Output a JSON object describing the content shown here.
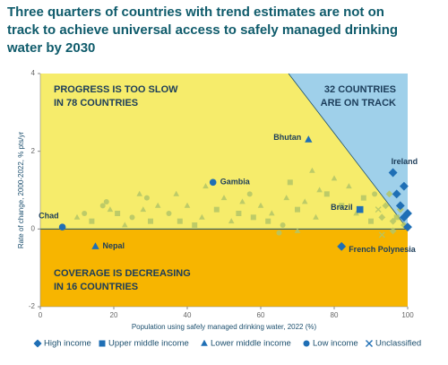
{
  "chart_data": {
    "type": "scatter",
    "title_lines": [
      "Three quarters of countries with trend estimates are not on",
      "track to achieve universal access to safely managed drinking",
      "water by 2030"
    ],
    "x_label": "Population using safely managed drinking water, 2022 (%)",
    "y_label": "Rate of change, 2000-2022, % pts/yr",
    "xlim": [
      0,
      100
    ],
    "ylim": [
      -2,
      4
    ],
    "xticks": [
      0,
      20,
      40,
      60,
      80,
      100
    ],
    "yticks": [
      -2,
      0,
      2,
      4
    ],
    "zones": [
      {
        "lines": [
          "PROGRESS IS TOO SLOW",
          "IN 78 COUNTRIES"
        ],
        "color": "#f6ec6b"
      },
      {
        "lines": [
          "32 COUNTRIES",
          "ARE ON TRACK"
        ],
        "color": "#9fd0ea"
      },
      {
        "lines": [
          "COVERAGE IS DECREASING",
          "IN 16 COUNTRIES"
        ],
        "color": "#f7b500"
      }
    ],
    "series": [
      {
        "name": "High income",
        "marker": "diamond",
        "color": "#1f6fb5",
        "x": [
          96,
          82,
          98,
          99,
          100,
          97,
          99,
          100
        ],
        "y": [
          1.45,
          -0.45,
          0.6,
          0.3,
          0.05,
          0.9,
          1.1,
          0.4
        ],
        "labels": [
          "Ireland",
          "French Polynesia",
          null,
          null,
          null,
          null,
          null,
          null
        ]
      },
      {
        "name": "Upper middle income",
        "marker": "square",
        "color": "#1f6fb5",
        "x": [
          87
        ],
        "y": [
          0.5
        ],
        "labels": [
          "Brazil"
        ]
      },
      {
        "name": "Lower middle income",
        "marker": "triangle",
        "color": "#1f6fb5",
        "x": [
          73,
          15
        ],
        "y": [
          2.3,
          -0.45
        ],
        "labels": [
          "Bhutan",
          "Nepal"
        ]
      },
      {
        "name": "Low income",
        "marker": "circle",
        "color": "#1f6fb5",
        "x": [
          47,
          6
        ],
        "y": [
          1.2,
          0.05
        ],
        "labels": [
          "Gambia",
          "Chad"
        ]
      },
      {
        "name": "Unclassified",
        "marker": "x",
        "color": "#1f6fb5",
        "x": [],
        "y": [],
        "labels": []
      }
    ],
    "other_points": {
      "color": "#b3c667",
      "x": [
        10,
        12,
        14,
        17,
        18,
        19,
        21,
        23,
        25,
        27,
        28,
        29,
        30,
        32,
        35,
        37,
        38,
        40,
        42,
        44,
        45,
        48,
        50,
        52,
        54,
        55,
        57,
        58,
        60,
        62,
        63,
        66,
        67,
        68,
        70,
        72,
        74,
        75,
        76,
        78,
        80,
        82,
        84,
        86,
        88,
        90,
        91,
        92,
        93,
        94,
        95,
        96,
        97,
        98,
        99,
        65,
        70,
        93,
        96
      ],
      "y": [
        0.3,
        0.4,
        0.2,
        0.6,
        0.7,
        0.5,
        0.4,
        0.1,
        0.3,
        0.9,
        0.5,
        0.8,
        0.2,
        0.6,
        0.4,
        0.9,
        0.2,
        0.6,
        0.1,
        0.3,
        1.1,
        0.5,
        0.8,
        0.2,
        0.4,
        0.7,
        0.9,
        0.3,
        0.6,
        0.2,
        0.4,
        0.1,
        0.8,
        1.2,
        0.5,
        0.7,
        1.5,
        0.3,
        1.0,
        0.9,
        1.3,
        0.6,
        1.1,
        0.4,
        0.8,
        0.2,
        0.9,
        0.5,
        0.3,
        0.6,
        0.9,
        0.2,
        0.3,
        0.5,
        0.1,
        -0.1,
        -0.05,
        -0.15,
        -0.05
      ],
      "markers": [
        "triangle",
        "circle",
        "square",
        "circle",
        "circle",
        "triangle",
        "square",
        "triangle",
        "circle",
        "triangle",
        "triangle",
        "circle",
        "square",
        "triangle",
        "circle",
        "triangle",
        "square",
        "triangle",
        "square",
        "triangle",
        "triangle",
        "square",
        "triangle",
        "triangle",
        "square",
        "triangle",
        "circle",
        "square",
        "triangle",
        "square",
        "triangle",
        "circle",
        "triangle",
        "square",
        "square",
        "triangle",
        "triangle",
        "triangle",
        "triangle",
        "square",
        "triangle",
        "square",
        "triangle",
        "triangle",
        "square",
        "square",
        "circle",
        "x",
        "diamond",
        "diamond",
        "diamond",
        "diamond",
        "square",
        "diamond",
        "diamond",
        "circle",
        "triangle",
        "x",
        "diamond"
      ]
    }
  }
}
